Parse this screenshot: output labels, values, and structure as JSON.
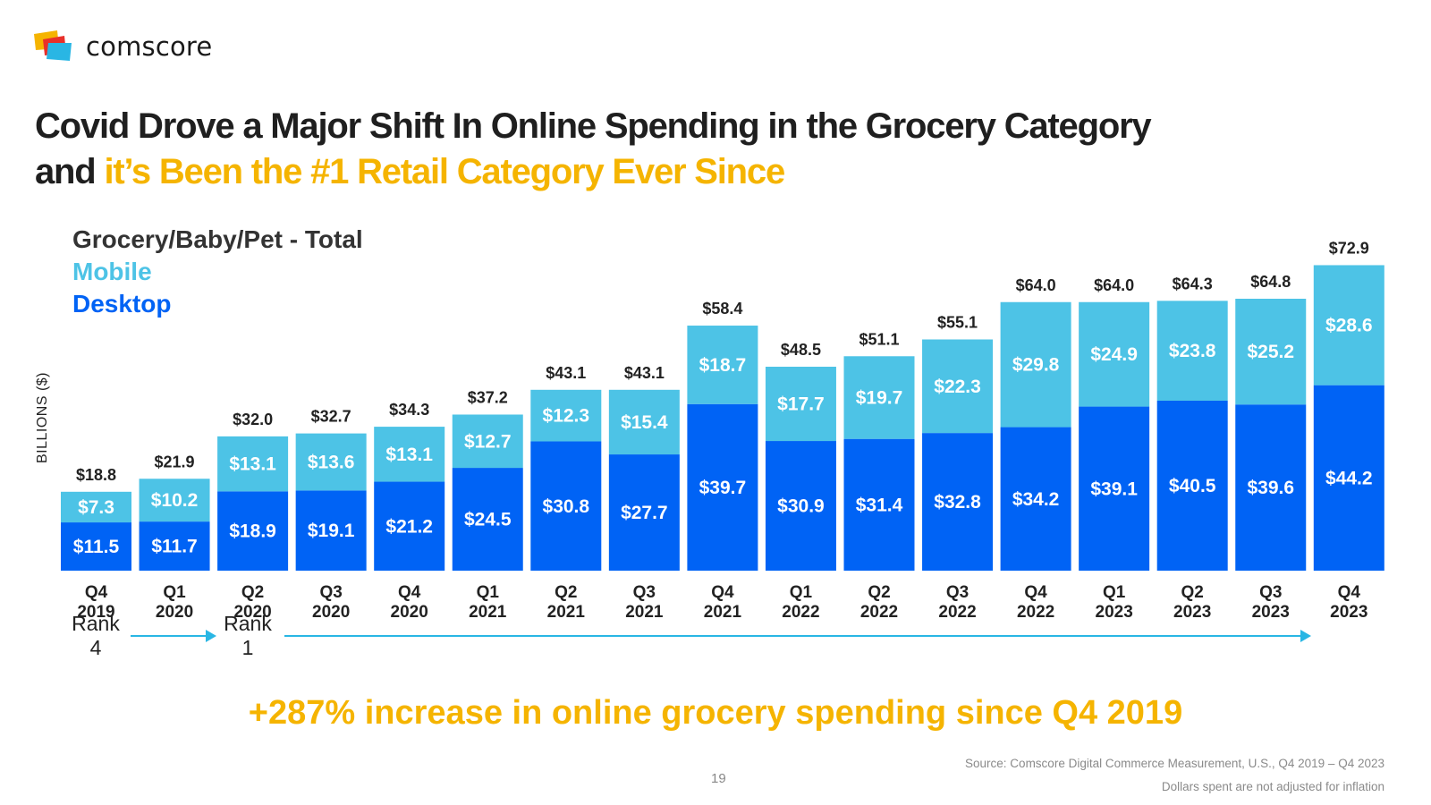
{
  "brand": {
    "name": "comscore",
    "logo_icon": "comscore-logo-icon"
  },
  "headline": {
    "line1": "Covid Drove a Major Shift In Online Spending in the Grocery Category",
    "line2_prefix": "and ",
    "line2_highlight": "it’s Been the #1 Retail Category Ever Since",
    "highlight_color": "#f5b400"
  },
  "chart_data": {
    "type": "bar",
    "stacked": true,
    "title": "Grocery/Baby/Pet - Total",
    "ylabel": "BILLIONS ($)",
    "xlabel": "",
    "categories": [
      [
        "Q4",
        "2019"
      ],
      [
        "Q1",
        "2020"
      ],
      [
        "Q2",
        "2020"
      ],
      [
        "Q3",
        "2020"
      ],
      [
        "Q4",
        "2020"
      ],
      [
        "Q1",
        "2021"
      ],
      [
        "Q2",
        "2021"
      ],
      [
        "Q3",
        "2021"
      ],
      [
        "Q4",
        "2021"
      ],
      [
        "Q1",
        "2022"
      ],
      [
        "Q2",
        "2022"
      ],
      [
        "Q3",
        "2022"
      ],
      [
        "Q4",
        "2022"
      ],
      [
        "Q1",
        "2023"
      ],
      [
        "Q2",
        "2023"
      ],
      [
        "Q3",
        "2023"
      ],
      [
        "Q4",
        "2023"
      ]
    ],
    "series": [
      {
        "name": "Desktop",
        "color": "#0063f5",
        "values": [
          11.5,
          11.7,
          18.9,
          19.1,
          21.2,
          24.5,
          30.8,
          27.7,
          39.7,
          30.9,
          31.4,
          32.8,
          34.2,
          39.1,
          40.5,
          39.6,
          44.2
        ]
      },
      {
        "name": "Mobile",
        "color": "#4dc3e6",
        "values": [
          7.3,
          10.2,
          13.1,
          13.6,
          13.1,
          12.7,
          12.3,
          15.4,
          18.7,
          17.7,
          19.7,
          22.3,
          29.8,
          24.9,
          23.8,
          25.2,
          28.6
        ]
      }
    ],
    "totals": [
      18.8,
      21.9,
      32.0,
      32.7,
      34.3,
      37.2,
      43.1,
      43.1,
      58.4,
      48.5,
      51.1,
      55.1,
      64.0,
      64.0,
      64.3,
      64.8,
      72.9
    ],
    "value_prefix": "$",
    "ylim": [
      0,
      80
    ],
    "grid": false,
    "legend": {
      "position": "top-left",
      "entries": [
        "Grocery/Baby/Pet - Total",
        "Mobile",
        "Desktop"
      ]
    }
  },
  "ranks": [
    {
      "line1": "Rank",
      "line2": "4"
    },
    {
      "line1": "Rank",
      "line2": "1"
    }
  ],
  "callout": "+287% increase in online grocery spending since Q4 2019",
  "page_number": "19",
  "source": "Source: Comscore Digital Commerce Measurement, U.S., Q4 2019 – Q4 2023",
  "note": "Dollars spent are not adjusted for inflation"
}
